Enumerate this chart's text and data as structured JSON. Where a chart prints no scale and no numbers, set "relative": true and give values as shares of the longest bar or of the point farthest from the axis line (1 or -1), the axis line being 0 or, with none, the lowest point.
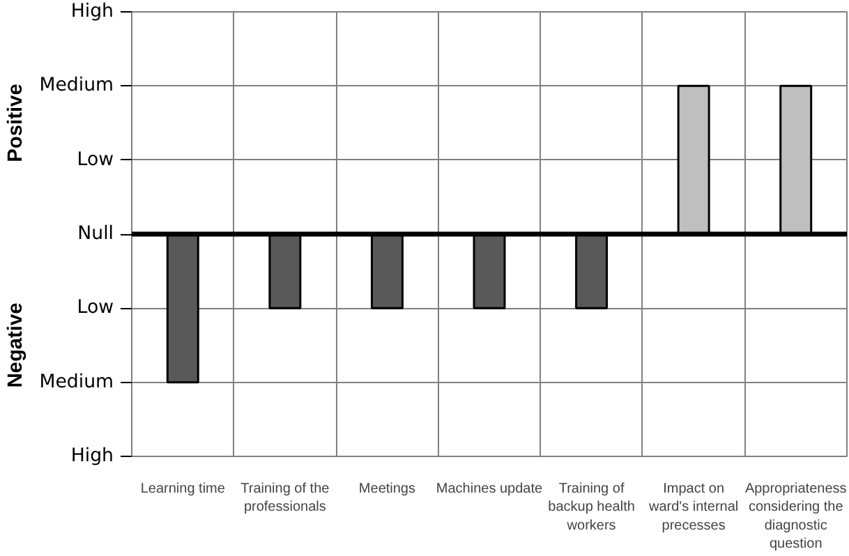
{
  "chart_data": {
    "type": "bar",
    "relative": true,
    "categories": [
      "Learning time",
      "Training of the professionals",
      "Meetings",
      "Machines update",
      "Training of backup health workers",
      "Impact on ward's internal precesses",
      "Appropriateness considering the diagnostic question"
    ],
    "values": [
      -1,
      -0.5,
      -0.5,
      -0.5,
      -0.5,
      1,
      1
    ],
    "colors": [
      "#595959",
      "#595959",
      "#595959",
      "#595959",
      "#595959",
      "#bfbfbf",
      "#bfbfbf"
    ],
    "ref_lines": [
      {
        "axis": "y",
        "value": 0,
        "color": "#000000"
      }
    ],
    "annotations": [
      "Positive",
      "Negative",
      "High",
      "Medium",
      "Low",
      "Null",
      "Low",
      "Medium",
      "High"
    ],
    "grid": true
  }
}
